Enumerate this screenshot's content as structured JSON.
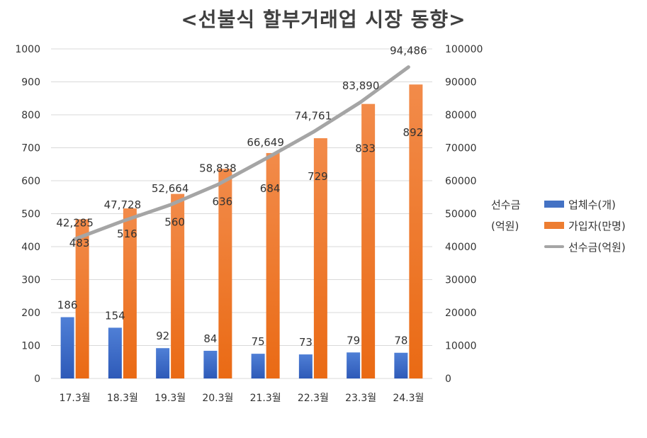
{
  "chart_data": {
    "type": "bar",
    "title": "<선불식 할부거래업 시장 동향>",
    "categories": [
      "17.3월",
      "18.3월",
      "19.3월",
      "20.3월",
      "21.3월",
      "22.3월",
      "23.3월",
      "24.3월"
    ],
    "series": [
      {
        "name": "업체수(개)",
        "type": "bar",
        "axis": "left",
        "color": "#4472C4",
        "values": [
          186,
          154,
          92,
          84,
          75,
          73,
          79,
          78
        ],
        "labels": [
          "186",
          "154",
          "92",
          "84",
          "75",
          "73",
          "79",
          "78"
        ]
      },
      {
        "name": "가입자(만명)",
        "type": "bar",
        "axis": "left",
        "color": "#ED7D31",
        "values": [
          483,
          516,
          560,
          636,
          684,
          729,
          833,
          892
        ],
        "labels": [
          "483",
          "516",
          "560",
          "636",
          "684",
          "729",
          "833",
          "892"
        ]
      },
      {
        "name": "선수금(억원)",
        "type": "line",
        "axis": "right",
        "color": "#A5A5A5",
        "values": [
          42285,
          47728,
          52664,
          58838,
          66649,
          74761,
          83890,
          94486
        ],
        "labels": [
          "42,285",
          "47,728",
          "52,664",
          "58,838",
          "66,649",
          "74,761",
          "83,890",
          "94,486"
        ]
      }
    ],
    "left_axis": {
      "min": 0,
      "max": 1000,
      "step": 100,
      "ticks": [
        "0",
        "100",
        "200",
        "300",
        "400",
        "500",
        "600",
        "700",
        "800",
        "900",
        "1000"
      ]
    },
    "right_axis": {
      "min": 0,
      "max": 100000,
      "step": 10000,
      "ticks": [
        "0",
        "10000",
        "20000",
        "30000",
        "40000",
        "50000",
        "60000",
        "70000",
        "80000",
        "90000",
        "100000"
      ]
    },
    "right_axis_label_line1": "선수금",
    "right_axis_label_line2": "(억원)",
    "grid": true,
    "legend_position": "right"
  },
  "legend": {
    "items": [
      {
        "label": "업체수(개)",
        "color": "#4472C4",
        "kind": "bar"
      },
      {
        "label": "가입자(만명)",
        "color": "#ED7D31",
        "kind": "bar"
      },
      {
        "label": "선수금(억원)",
        "color": "#A5A5A5",
        "kind": "line"
      }
    ]
  }
}
